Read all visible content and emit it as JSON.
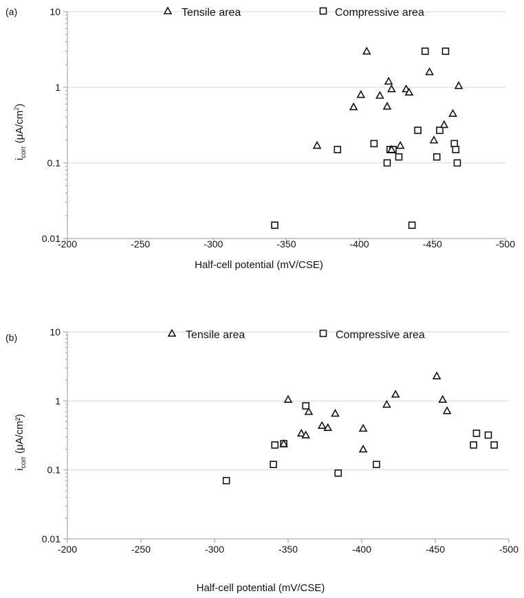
{
  "chart_data": [
    {
      "type": "scatter",
      "panel_label": "(a)",
      "xlabel": "Half-cell potential (mV/CSE)",
      "ylabel": {
        "base": "i",
        "sub": "corr",
        "mid": " (μA/cm",
        "sup": "2",
        "end": ")"
      },
      "y_scale": "log",
      "xlim": [
        -200,
        -500
      ],
      "ylim": [
        0.01,
        10
      ],
      "x_ticks": [
        "-200",
        "-250",
        "-300",
        "-350",
        "-400",
        "-450",
        "-500"
      ],
      "y_ticks": [
        "0.01",
        "0.1",
        "1",
        "10"
      ],
      "grid": "horizontal",
      "legend_position": "top",
      "series": [
        {
          "name": "Tensile area",
          "marker": "triangle",
          "points": [
            [
              -371,
              0.17
            ],
            [
              -396,
              0.55
            ],
            [
              -401,
              0.8
            ],
            [
              -405,
              3.0
            ],
            [
              -414,
              0.78
            ],
            [
              -419,
              0.56
            ],
            [
              -420,
              1.2
            ],
            [
              -422,
              0.95
            ],
            [
              -422,
              0.15
            ],
            [
              -428,
              0.17
            ],
            [
              -432,
              0.95
            ],
            [
              -434,
              0.86
            ],
            [
              -448,
              1.6
            ],
            [
              -451,
              0.2
            ],
            [
              -458,
              0.32
            ],
            [
              -464,
              0.45
            ],
            [
              -468,
              1.05
            ]
          ]
        },
        {
          "name": "Compressive area",
          "marker": "square",
          "points": [
            [
              -342,
              0.015
            ],
            [
              -385,
              0.15
            ],
            [
              -410,
              0.18
            ],
            [
              -419,
              0.1
            ],
            [
              -421,
              0.15
            ],
            [
              -423,
              0.15
            ],
            [
              -427,
              0.12
            ],
            [
              -436,
              0.015
            ],
            [
              -440,
              0.27
            ],
            [
              -445,
              3.0
            ],
            [
              -453,
              0.12
            ],
            [
              -455,
              0.27
            ],
            [
              -459,
              3.0
            ],
            [
              -465,
              0.18
            ],
            [
              -466,
              0.15
            ],
            [
              -467,
              0.1
            ]
          ]
        }
      ]
    },
    {
      "type": "scatter",
      "panel_label": "(b)",
      "xlabel": "Half-cell potential (mV/CSE)",
      "ylabel": {
        "base": "i",
        "sub": "corr",
        "mid": " (μA/cm²)",
        "sup": "",
        "end": ""
      },
      "y_scale": "log",
      "xlim": [
        -200,
        -500
      ],
      "ylim": [
        0.01,
        10
      ],
      "x_ticks": [
        "-200",
        "-250",
        "-300",
        "-350",
        "-400",
        "-450",
        "-500"
      ],
      "y_ticks": [
        "0.01",
        "0.1",
        "1",
        "10"
      ],
      "grid": "horizontal",
      "legend_position": "top",
      "series": [
        {
          "name": "Tensile area",
          "marker": "triangle",
          "points": [
            [
              -347,
              0.24
            ],
            [
              -350,
              1.05
            ],
            [
              -359,
              0.34
            ],
            [
              -362,
              0.32
            ],
            [
              -364,
              0.7
            ],
            [
              -373,
              0.44
            ],
            [
              -377,
              0.41
            ],
            [
              -382,
              0.66
            ],
            [
              -401,
              0.2
            ],
            [
              -401,
              0.4
            ],
            [
              -417,
              0.89
            ],
            [
              -423,
              1.25
            ],
            [
              -451,
              2.3
            ],
            [
              -455,
              1.05
            ],
            [
              -458,
              0.72
            ]
          ]
        },
        {
          "name": "Compressive area",
          "marker": "square",
          "points": [
            [
              -308,
              0.07
            ],
            [
              -340,
              0.12
            ],
            [
              -341,
              0.23
            ],
            [
              -347,
              0.24
            ],
            [
              -362,
              0.85
            ],
            [
              -384,
              0.09
            ],
            [
              -410,
              0.12
            ],
            [
              -476,
              0.23
            ],
            [
              -478,
              0.34
            ],
            [
              -486,
              0.32
            ],
            [
              -490,
              0.23
            ]
          ]
        }
      ]
    }
  ]
}
